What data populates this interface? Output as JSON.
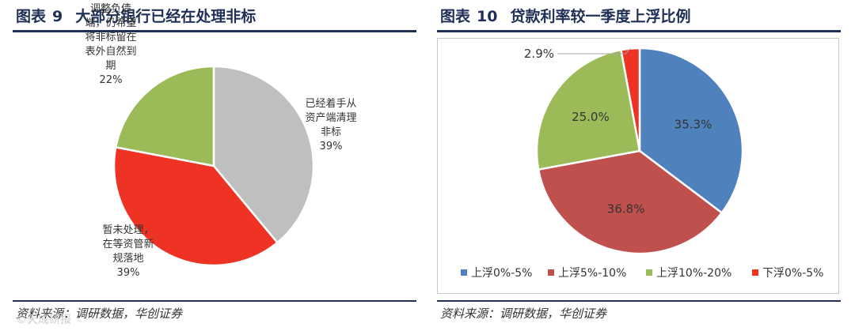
{
  "left_panel": {
    "title_prefix": "图表",
    "title_number": "9",
    "title_text": "大部分银行已经在处理非标",
    "source": "资料来源：调研数据，华创证券"
  },
  "right_panel": {
    "title_prefix": "图表",
    "title_number": "10",
    "title_text": "贷款利率较一季度上浮比例",
    "source": "资料来源：调研数据，华创证券"
  },
  "chart_data": [
    {
      "type": "pie",
      "title": "大部分银行已经在处理非标",
      "slices": [
        {
          "label": "已经着手从资产端清理非标",
          "label_lines": [
            "已经着手从",
            "资产端清理",
            "非标"
          ],
          "value_label": "39%",
          "value": 39,
          "color": "#bfbfbf"
        },
        {
          "label": "暂未处理，在等资管新规落地",
          "label_lines": [
            "暂未处理，",
            "在等资管新",
            "规落地"
          ],
          "value_label": "39%",
          "value": 39,
          "color": "#ee3224"
        },
        {
          "label": "调整负债端，仍希望将非标留在表外自然到期",
          "label_lines": [
            "调整负债",
            "端，仍希望",
            "将非标留在",
            "表外自然到",
            "期"
          ],
          "value_label": "22%",
          "value": 22,
          "color": "#9bbb59"
        }
      ]
    },
    {
      "type": "pie",
      "title": "贷款利率较一季度上浮比例",
      "slices": [
        {
          "label": "上浮0%-5%",
          "value": 35.3,
          "value_label": "35.3%",
          "color": "#4f81bd"
        },
        {
          "label": "上浮5%-10%",
          "value": 36.8,
          "value_label": "36.8%",
          "color": "#c0504d"
        },
        {
          "label": "上浮10%-20%",
          "value": 25.0,
          "value_label": "25.0%",
          "color": "#9bbb59"
        },
        {
          "label": "下浮0%-5%",
          "value": 2.9,
          "value_label": "2.9%",
          "color": "#ee3224"
        }
      ],
      "legend": "bottom"
    }
  ],
  "watermark": "©天成研报"
}
